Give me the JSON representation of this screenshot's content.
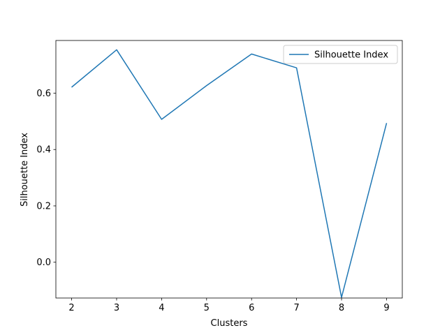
{
  "chart_data": {
    "type": "line",
    "xlabel": "Clusters",
    "ylabel": "Silhouette Index",
    "x": [
      2,
      3,
      4,
      5,
      6,
      7,
      8,
      9
    ],
    "xlim": [
      1.65,
      9.35
    ],
    "ylim": [
      -0.127,
      0.787
    ],
    "xticks": [
      2,
      3,
      4,
      5,
      6,
      7,
      8,
      9
    ],
    "yticks": [
      0.0,
      0.2,
      0.4,
      0.6
    ],
    "ytick_labels": [
      "0.0",
      "0.2",
      "0.4",
      "0.6"
    ],
    "grid": false,
    "legend_position": "top-right",
    "series": [
      {
        "name": "Silhouette Index",
        "color": "#1f77b4",
        "values": [
          0.621,
          0.754,
          0.507,
          0.627,
          0.739,
          0.69,
          -0.125,
          0.494
        ]
      }
    ]
  }
}
